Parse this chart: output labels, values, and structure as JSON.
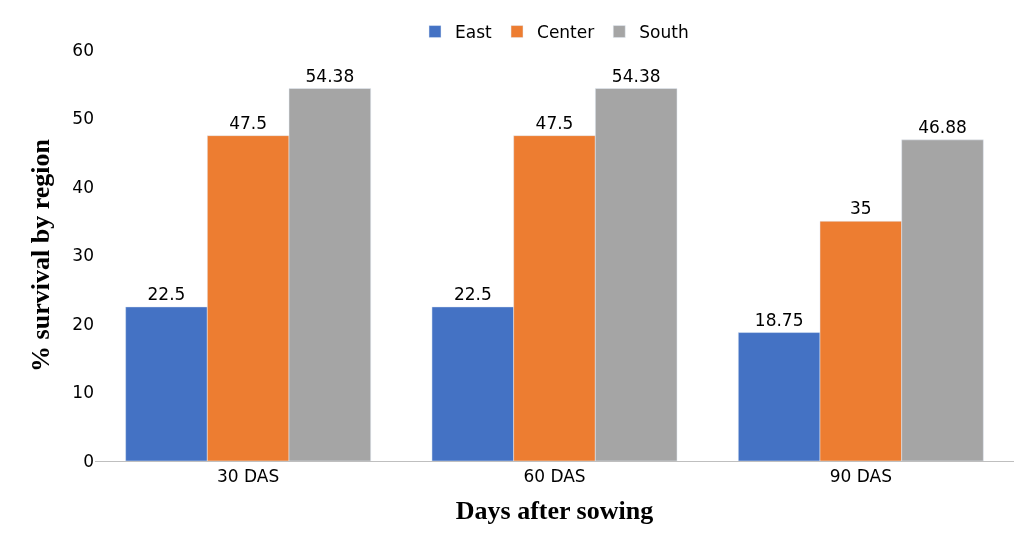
{
  "chart_data": {
    "type": "bar",
    "xlabel": "Days after sowing",
    "ylabel": "% survival by region",
    "categories": [
      "30 DAS",
      "60 DAS",
      "90 DAS"
    ],
    "series": [
      {
        "name": "East",
        "color": "#4472c4",
        "values": [
          22.5,
          22.5,
          18.75
        ]
      },
      {
        "name": "Center",
        "color": "#ed7d31",
        "values": [
          47.5,
          47.5,
          35
        ]
      },
      {
        "name": "South",
        "color": "#a5a5a5",
        "values": [
          54.38,
          54.38,
          46.88
        ]
      }
    ],
    "ylim": [
      0,
      60
    ],
    "yticks": [
      0,
      10,
      20,
      30,
      40,
      50,
      60
    ],
    "grid": false,
    "legend": "top",
    "data_labels": true
  }
}
